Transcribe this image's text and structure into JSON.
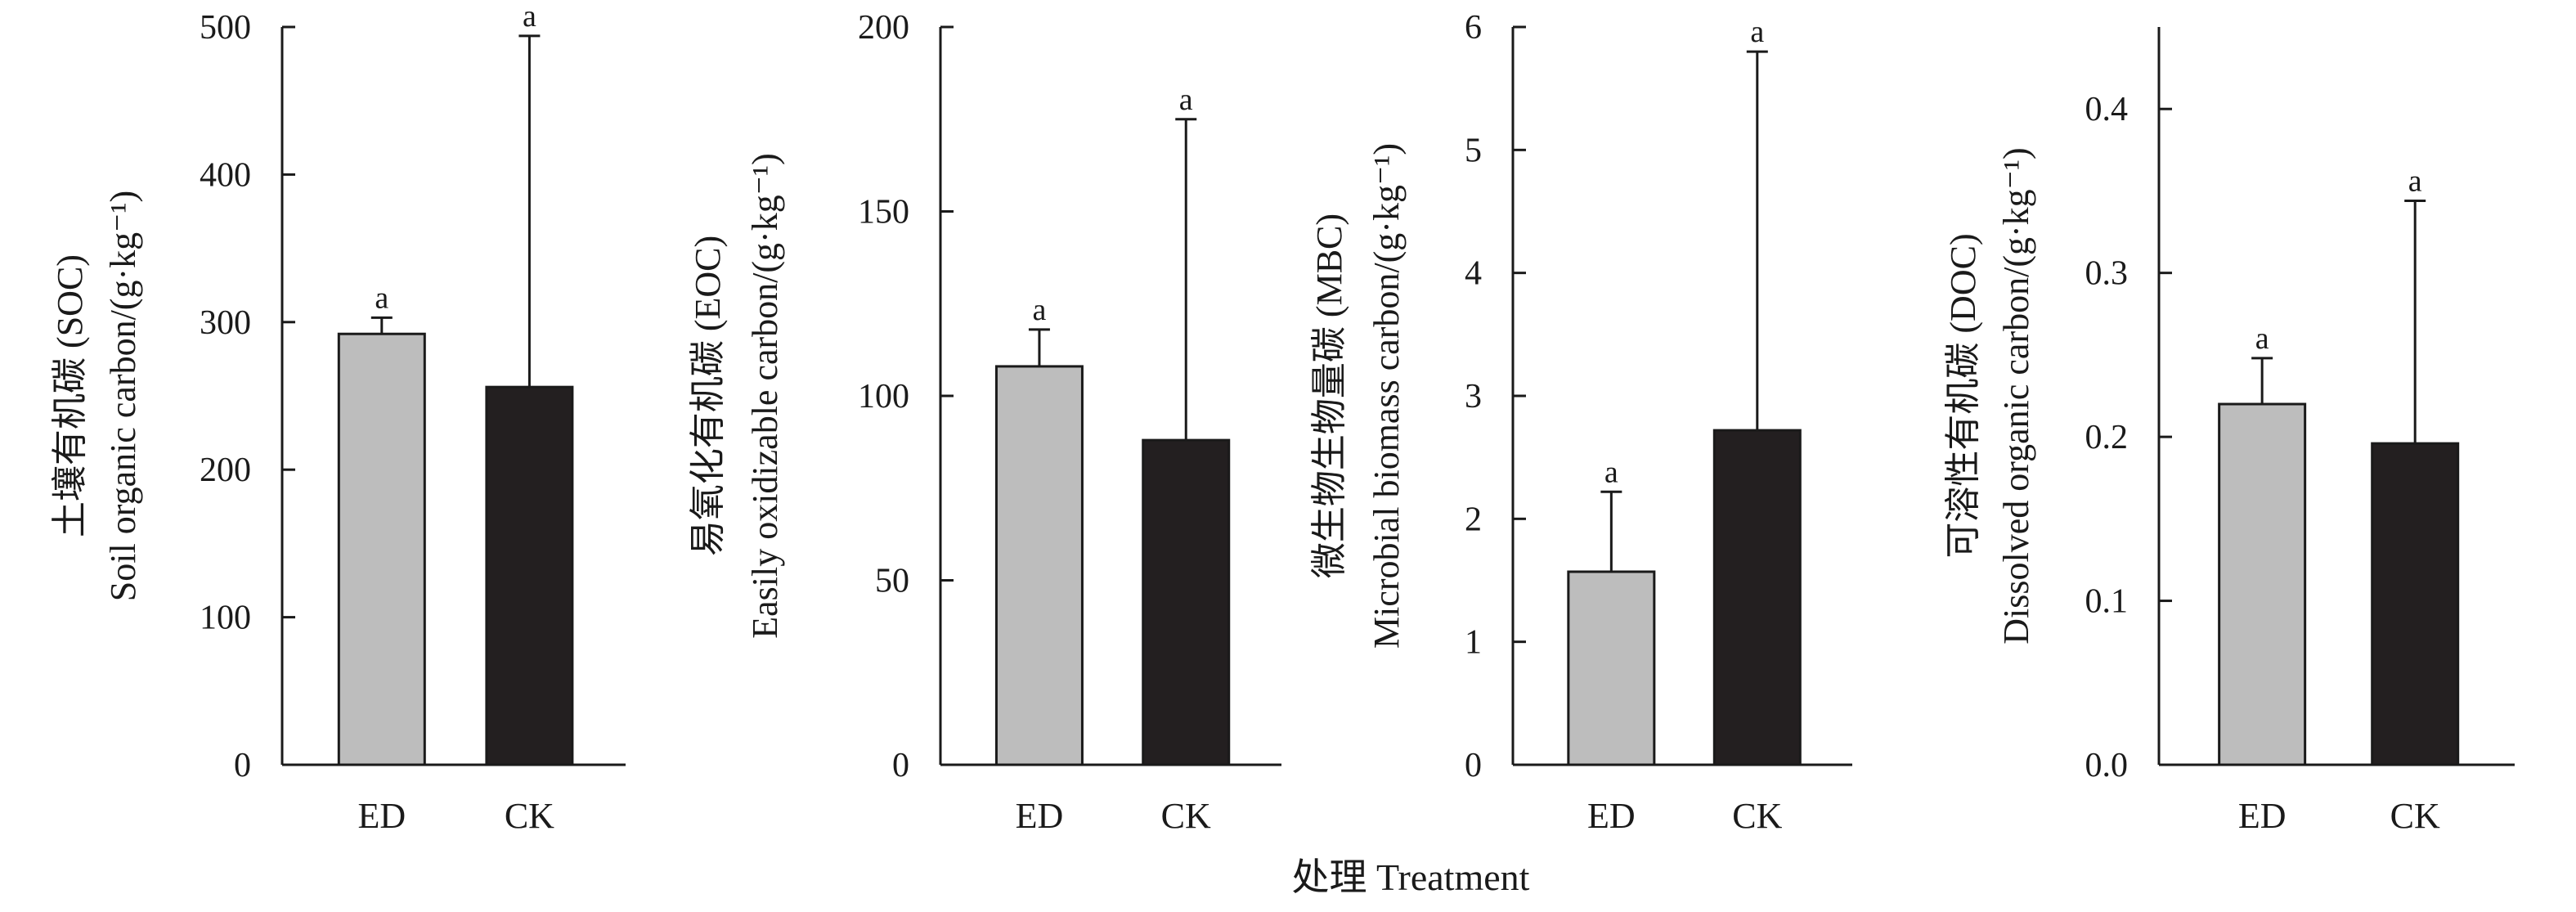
{
  "figure": {
    "xlabel": "处理 Treatment",
    "colors": {
      "ED": "#bdbdbd",
      "CK": "#231f20",
      "axis": "#1a1a1a"
    }
  },
  "chart_data": [
    {
      "type": "bar",
      "ylabel_cn": "土壤有机碳 (SOC)",
      "ylabel_en": "Soil organic carbon/(g·kg⁻¹)",
      "categories": [
        "ED",
        "CK"
      ],
      "values": [
        292,
        256
      ],
      "errors": [
        11,
        238
      ],
      "significance": [
        "a",
        "a"
      ],
      "ylim": [
        0,
        500
      ],
      "yticks": [
        0,
        100,
        200,
        300,
        400,
        500
      ],
      "ytick_labels": [
        "0",
        "100",
        "200",
        "300",
        "400",
        "500"
      ]
    },
    {
      "type": "bar",
      "ylabel_cn": "易氧化有机碳 (EOC)",
      "ylabel_en": "Easily oxidizable carbon/(g·kg⁻¹)",
      "categories": [
        "ED",
        "CK"
      ],
      "values": [
        108,
        88
      ],
      "errors": [
        10,
        87
      ],
      "significance": [
        "a",
        "a"
      ],
      "ylim": [
        0,
        200
      ],
      "yticks": [
        0,
        50,
        100,
        150,
        200
      ],
      "ytick_labels": [
        "0",
        "50",
        "100",
        "150",
        "200"
      ]
    },
    {
      "type": "bar",
      "ylabel_cn": "微生物生物量碳 (MBC)",
      "ylabel_en": "Microbial biomass carbon/(g·kg⁻¹)",
      "categories": [
        "ED",
        "CK"
      ],
      "values": [
        1.57,
        2.72
      ],
      "errors": [
        0.65,
        3.08
      ],
      "significance": [
        "a",
        "a"
      ],
      "ylim": [
        0,
        6
      ],
      "yticks": [
        0,
        1,
        2,
        3,
        4,
        5,
        6
      ],
      "ytick_labels": [
        "0",
        "1",
        "2",
        "3",
        "4",
        "5",
        "6"
      ]
    },
    {
      "type": "bar",
      "ylabel_cn": "可溶性有机碳 (DOC)",
      "ylabel_en": "Dissolved organic carbon/(g·kg⁻¹)",
      "categories": [
        "ED",
        "CK"
      ],
      "values": [
        0.22,
        0.196
      ],
      "errors": [
        0.028,
        0.148
      ],
      "significance": [
        "a",
        "a"
      ],
      "ylim": [
        0,
        0.45
      ],
      "yticks": [
        0,
        0.1,
        0.2,
        0.3,
        0.4
      ],
      "ytick_labels": [
        "0.0",
        "0.1",
        "0.2",
        "0.3",
        "0.4"
      ]
    }
  ]
}
